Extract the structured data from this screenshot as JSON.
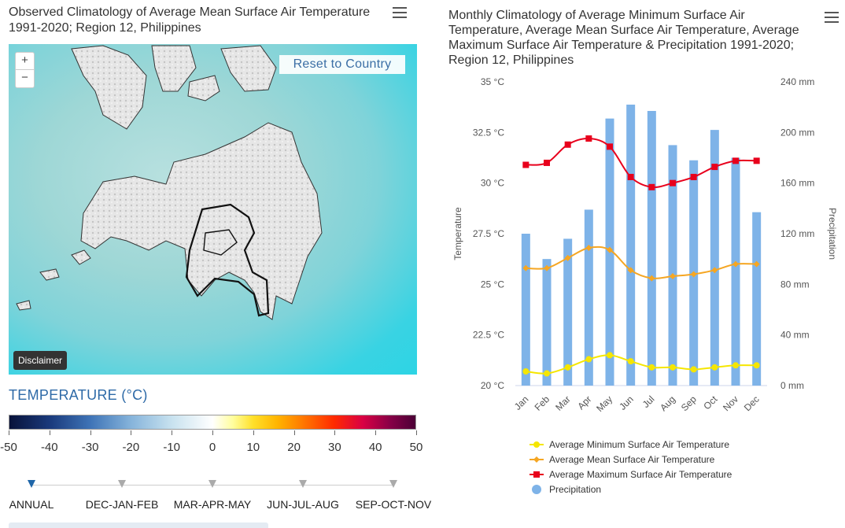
{
  "left_panel": {
    "title": "Observed Climatology of Average Mean Surface Air Temperature 1991-2020; Region 12, Philippines",
    "menu_icon": "hamburger-icon",
    "map": {
      "zoom_in_label": "+",
      "zoom_out_label": "−",
      "reset_label": "Reset to Country",
      "disclaimer_label": "Disclaimer"
    },
    "legend": {
      "heading": "TEMPERATURE (°C)",
      "ticks": [
        "-50",
        "-40",
        "-30",
        "-20",
        "-10",
        "0",
        "10",
        "20",
        "30",
        "40",
        "50"
      ]
    },
    "seasons": [
      {
        "label": "ANNUAL",
        "active": true
      },
      {
        "label": "DEC-JAN-FEB",
        "active": false
      },
      {
        "label": "MAR-APR-MAY",
        "active": false
      },
      {
        "label": "JUN-JUL-AUG",
        "active": false
      },
      {
        "label": "SEP-OCT-NOV",
        "active": false
      }
    ]
  },
  "right_panel": {
    "title": "Monthly Climatology of Average Minimum Surface Air Temperature, Average Mean Surface Air Temperature, Average Maximum Surface Air Temperature & Precipitation 1991-2020; Region 12, Philippines",
    "menu_icon": "hamburger-icon"
  },
  "colors": {
    "min_temp": "#f5e600",
    "mean_temp": "#f5a623",
    "max_temp": "#e8001c",
    "precip": "#7eb3e8",
    "heading_blue": "#2e6aa7"
  },
  "chart_data": {
    "type": "bar",
    "categories": [
      "Jan",
      "Feb",
      "Mar",
      "Apr",
      "May",
      "Jun",
      "Jul",
      "Aug",
      "Sep",
      "Oct",
      "Nov",
      "Dec"
    ],
    "left_axis": {
      "label": "Temperature",
      "ylim": [
        20,
        35
      ],
      "ticks": [
        "20 °C",
        "22.5 °C",
        "25 °C",
        "27.5 °C",
        "30 °C",
        "32.5 °C",
        "35 °C"
      ],
      "tick_values": [
        20,
        22.5,
        25,
        27.5,
        30,
        32.5,
        35
      ]
    },
    "right_axis": {
      "label": "Precipitation",
      "ylim": [
        0,
        240
      ],
      "ticks": [
        "0 mm",
        "40 mm",
        "80 mm",
        "120 mm",
        "160 mm",
        "200 mm",
        "240 mm"
      ],
      "tick_values": [
        0,
        40,
        80,
        120,
        160,
        200,
        240
      ]
    },
    "series": [
      {
        "name": "Average Minimum Surface Air Temperature",
        "kind": "line",
        "axis": "left",
        "marker": "circle",
        "values": [
          20.7,
          20.6,
          20.9,
          21.3,
          21.5,
          21.2,
          20.9,
          20.9,
          20.8,
          20.9,
          21.0,
          21.0
        ]
      },
      {
        "name": "Average Mean Surface Air Temperature",
        "kind": "line",
        "axis": "left",
        "marker": "diamond",
        "values": [
          25.8,
          25.8,
          26.3,
          26.8,
          26.7,
          25.7,
          25.3,
          25.4,
          25.5,
          25.7,
          26.0,
          26.0
        ]
      },
      {
        "name": "Average Maximum Surface Air Temperature",
        "kind": "line",
        "axis": "left",
        "marker": "square",
        "values": [
          30.9,
          31.0,
          31.9,
          32.2,
          31.8,
          30.3,
          29.8,
          30.0,
          30.3,
          30.8,
          31.1,
          31.1
        ]
      },
      {
        "name": "Precipitation",
        "kind": "bar",
        "axis": "right",
        "marker": "circle",
        "values": [
          120,
          100,
          116,
          139,
          211,
          222,
          217,
          190,
          178,
          202,
          180,
          137
        ]
      }
    ],
    "legend_position": "bottom",
    "grid": false
  }
}
